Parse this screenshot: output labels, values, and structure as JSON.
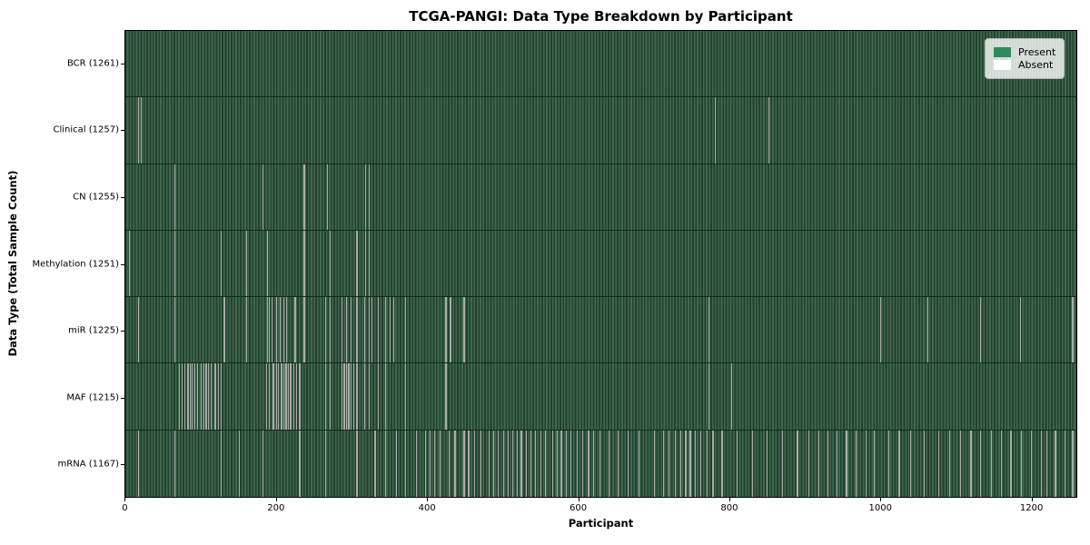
{
  "figure": {
    "background": "#ffffff",
    "plot_border_color": "#000000"
  },
  "chart_data": {
    "type": "heatmap",
    "title": "TCGA-PANGI: Data Type Breakdown by Participant",
    "xlabel": "Participant",
    "ylabel": "Data Type (Total Sample Count)",
    "n_participants": 1261,
    "x_ticks": [
      0,
      200,
      400,
      600,
      800,
      1000,
      1200
    ],
    "xlim": [
      0,
      1261
    ],
    "grid": false,
    "legend_position": "upper right",
    "legend": [
      {
        "label": "Present",
        "color": "#2e8b57"
      },
      {
        "label": "Absent",
        "color": "#ffffff"
      }
    ],
    "colors": {
      "present": "#2e8b57",
      "absent": "#ffffff",
      "absent_mark_on_plot": "#a9ada7"
    },
    "rows": [
      {
        "name": "BCR",
        "label": "BCR (1261)",
        "present_count": 1261,
        "absent_participants": []
      },
      {
        "name": "Clinical",
        "label": "Clinical (1257)",
        "present_count": 1257,
        "absent_participants": [
          16,
          20,
          781,
          852
        ]
      },
      {
        "name": "CN",
        "label": "CN (1255)",
        "present_count": 1255,
        "absent_participants": [
          64,
          181,
          236,
          267,
          317,
          322
        ]
      },
      {
        "name": "Methylation",
        "label": "Methylation (1251)",
        "present_count": 1251,
        "absent_participants": [
          4,
          64,
          126,
          160,
          187,
          236,
          270,
          306,
          317,
          322
        ]
      },
      {
        "name": "miR",
        "label": "miR (1225)",
        "present_count": 1225,
        "absent_participants": [
          16,
          64,
          130,
          160,
          187,
          190,
          193,
          199,
          204,
          209,
          213,
          224,
          236,
          264,
          270,
          286,
          292,
          298,
          306,
          316,
          322,
          326,
          334,
          344,
          350,
          355,
          370,
          424,
          430,
          448,
          773,
          1000,
          1063,
          1133,
          1186,
          1255
        ]
      },
      {
        "name": "MAF",
        "label": "MAF (1215)",
        "present_count": 1215,
        "absent_participants": [
          70,
          74,
          78,
          82,
          85,
          87,
          91,
          95,
          99,
          103,
          106,
          109,
          113,
          118,
          122,
          126,
          186,
          190,
          195,
          199,
          202,
          206,
          209,
          212,
          215,
          218,
          222,
          226,
          230,
          264,
          270,
          286,
          289,
          292,
          295,
          298,
          302,
          306,
          316,
          322,
          334,
          344,
          370,
          424,
          773,
          803
        ]
      },
      {
        "name": "mRNA",
        "label": "mRNA (1167)",
        "present_count": 1167,
        "absent_participants": [
          16,
          64,
          126,
          150,
          181,
          230,
          264,
          306,
          330,
          344,
          358,
          370,
          385,
          397,
          403,
          409,
          416,
          428,
          436,
          448,
          454,
          462,
          470,
          481,
          487,
          493,
          500,
          506,
          512,
          518,
          524,
          531,
          537,
          543,
          550,
          556,
          565,
          571,
          577,
          584,
          590,
          598,
          605,
          613,
          620,
          628,
          640,
          652,
          665,
          680,
          700,
          712,
          720,
          728,
          735,
          742,
          748,
          755,
          762,
          770,
          778,
          790,
          810,
          830,
          850,
          870,
          890,
          905,
          918,
          930,
          942,
          955,
          968,
          981,
          992,
          1011,
          1025,
          1040,
          1058,
          1077,
          1092,
          1106,
          1120,
          1133,
          1147,
          1160,
          1173,
          1187,
          1200,
          1213,
          1221,
          1232,
          1245,
          1255
        ]
      }
    ]
  }
}
